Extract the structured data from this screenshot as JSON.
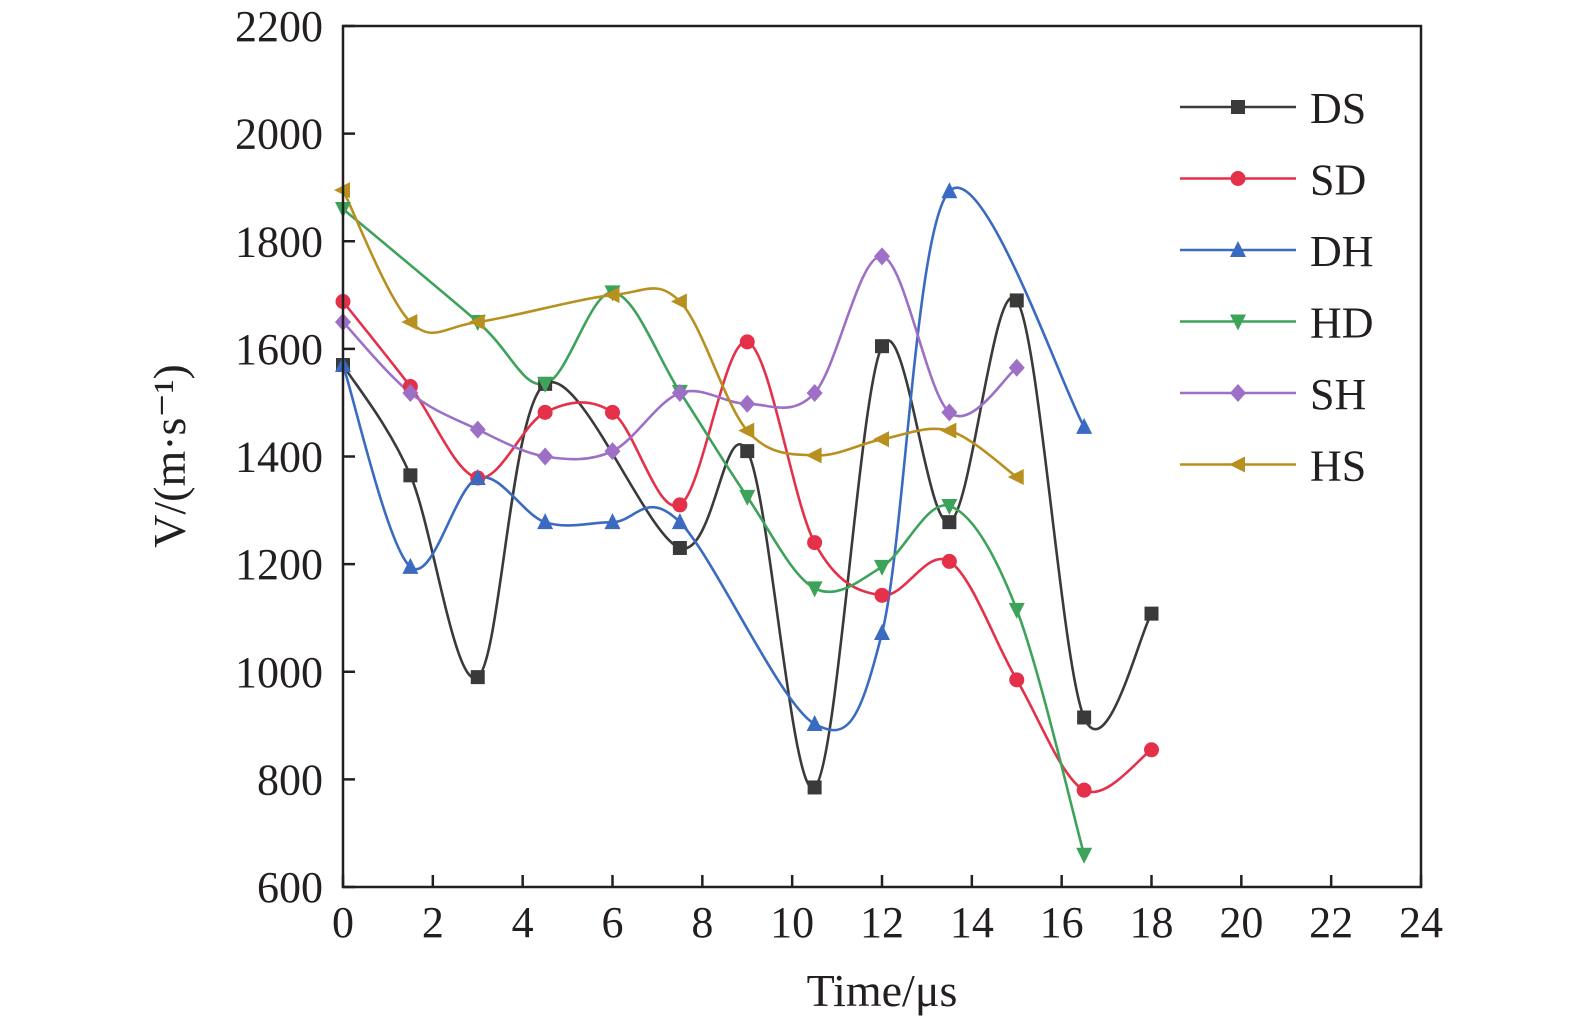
{
  "chart_data": {
    "type": "line",
    "title": "",
    "xlabel": "Time/μs",
    "ylabel": "V/(m·s⁻¹)",
    "xlim": [
      0,
      24
    ],
    "ylim": [
      600,
      2200
    ],
    "x_ticks": [
      "0",
      "2",
      "4",
      "6",
      "8",
      "10",
      "12",
      "14",
      "16",
      "18",
      "20",
      "22",
      "24"
    ],
    "y_ticks": [
      "600",
      "800",
      "1000",
      "1200",
      "1400",
      "1600",
      "1800",
      "2000",
      "2200"
    ],
    "grid": false,
    "legend_position": "top-right",
    "x": [
      0,
      1.5,
      3,
      4.5,
      6,
      7.5,
      9,
      10.5,
      12,
      13.5,
      15,
      16.5,
      18
    ],
    "series": [
      {
        "name": "DS",
        "color": "#3a3a3a",
        "marker": "square",
        "values": [
          1570,
          1365,
          990,
          1535,
          null,
          1230,
          1410,
          785,
          1605,
          1278,
          1690,
          915,
          1108
        ]
      },
      {
        "name": "SD",
        "color": "#e5304a",
        "marker": "circle",
        "values": [
          1688,
          1530,
          1360,
          1482,
          1482,
          1310,
          1613,
          1240,
          1142,
          1205,
          985,
          780,
          855
        ]
      },
      {
        "name": "DH",
        "color": "#3a6bc0",
        "marker": "triangle-up",
        "values": [
          1570,
          1195,
          1360,
          1278,
          1278,
          1278,
          null,
          903,
          1072,
          1893,
          null,
          1455,
          null
        ]
      },
      {
        "name": "HD",
        "color": "#3ea35a",
        "marker": "triangle-down",
        "values": [
          1860,
          null,
          1650,
          1535,
          1705,
          1520,
          1325,
          1155,
          1195,
          1308,
          1115,
          660,
          null
        ]
      },
      {
        "name": "SH",
        "color": "#9d6fc6",
        "marker": "diamond",
        "values": [
          1650,
          1518,
          1450,
          1400,
          1410,
          1518,
          1498,
          1518,
          1772,
          1482,
          1565,
          null,
          null
        ]
      },
      {
        "name": "HS",
        "color": "#b8901f",
        "marker": "triangle-left",
        "values": [
          1895,
          1650,
          1650,
          null,
          1700,
          1688,
          1448,
          1402,
          1432,
          1448,
          1362,
          null,
          null
        ]
      }
    ]
  }
}
